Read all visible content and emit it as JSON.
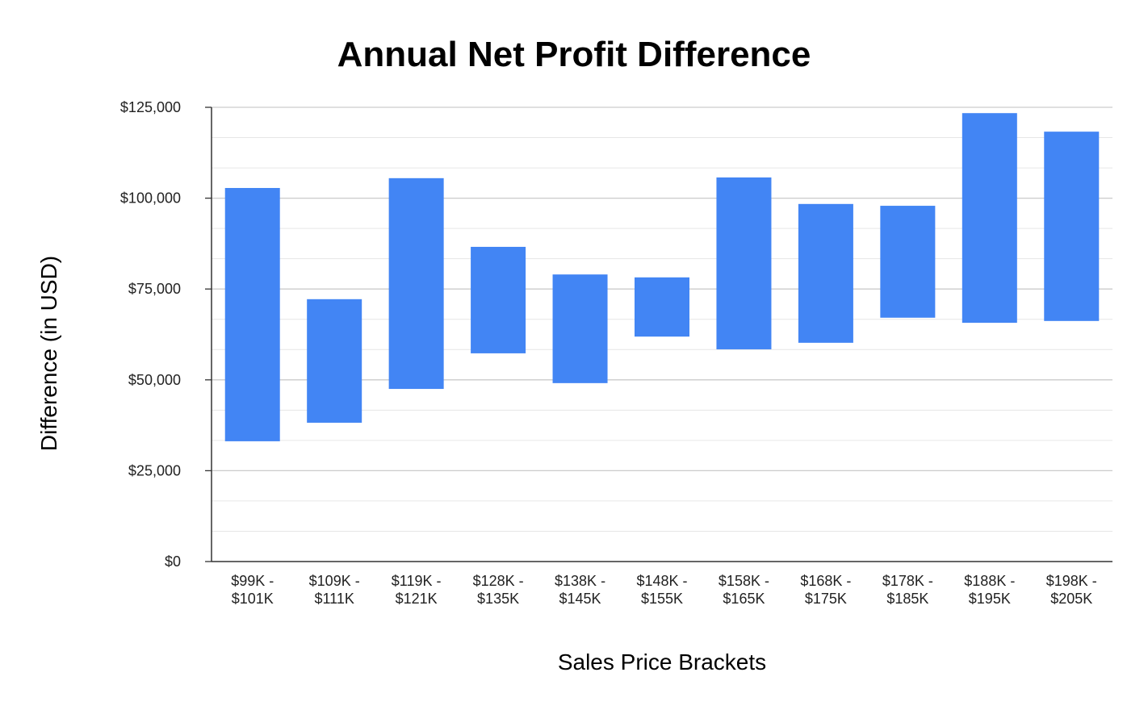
{
  "chart_data": {
    "type": "bar",
    "subtype": "floating",
    "title": "Annual Net Profit Difference",
    "xlabel": "Sales Price Brackets",
    "ylabel": "Difference (in USD)",
    "ylim": [
      0,
      125000
    ],
    "yticks": [
      0,
      25000,
      50000,
      75000,
      100000,
      125000
    ],
    "ytick_labels": [
      "$0",
      "$25,000",
      "$50,000",
      "$75,000",
      "$100,000",
      "$125,000"
    ],
    "grid": true,
    "color": "#4285f4",
    "categories": [
      [
        "$99K -",
        "$101K"
      ],
      [
        "$109K -",
        "$111K"
      ],
      [
        "$119K -",
        "$121K"
      ],
      [
        "$128K -",
        "$135K"
      ],
      [
        "$138K -",
        "$145K"
      ],
      [
        "$148K -",
        "$155K"
      ],
      [
        "$158K -",
        "$165K"
      ],
      [
        "$168K -",
        "$175K"
      ],
      [
        "$178K -",
        "$185K"
      ],
      [
        "$188K -",
        "$195K"
      ],
      [
        "$198K -",
        "$205K"
      ]
    ],
    "low": [
      33100,
      38200,
      47500,
      57300,
      49100,
      61900,
      58400,
      60200,
      67100,
      65700,
      66200
    ],
    "high": [
      102800,
      72200,
      105500,
      86600,
      79000,
      78200,
      105700,
      98400,
      97900,
      123400,
      118300
    ]
  }
}
